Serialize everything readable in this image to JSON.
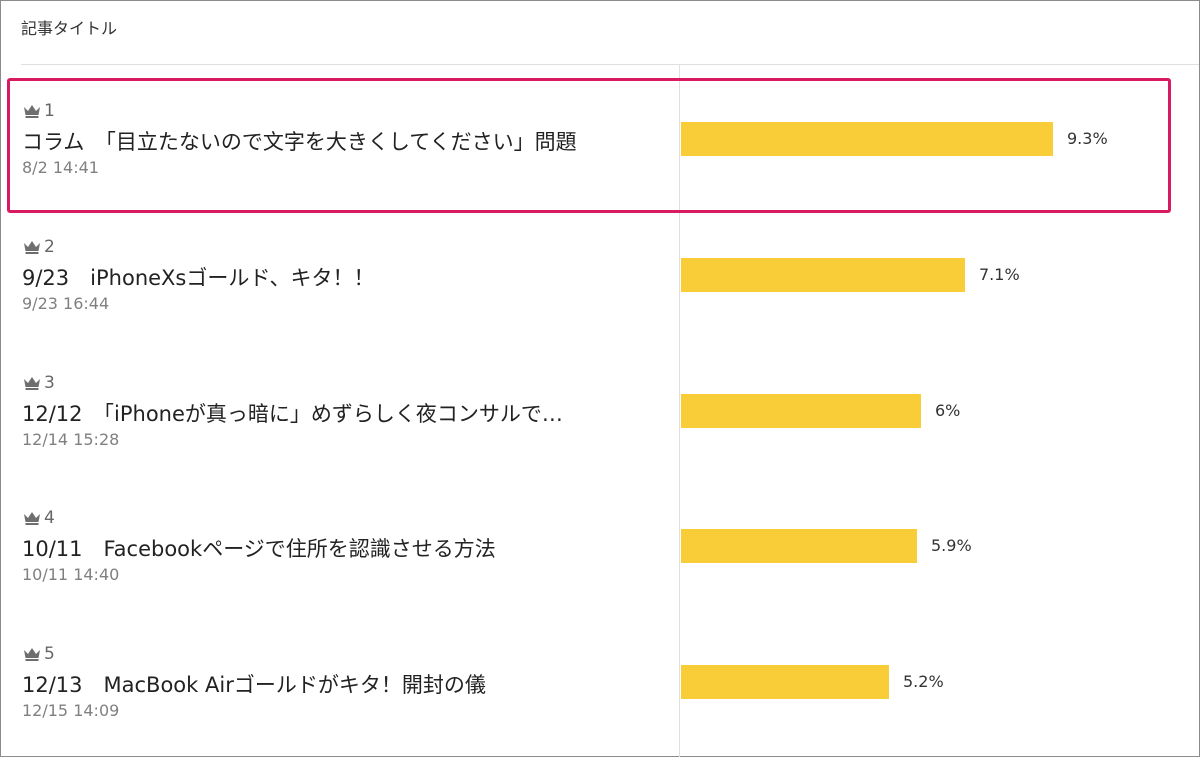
{
  "header": {
    "title": "記事タイトル"
  },
  "items": [
    {
      "rank": "1",
      "title": "コラム　「目立たないので文字を大きくしてください」問題",
      "date": "8/2 14:41",
      "percent_label": "9.3%",
      "share": 0.093
    },
    {
      "rank": "2",
      "title": "9/23　iPhoneXsゴールド、キタ！！",
      "date": "9/23 16:44",
      "percent_label": "7.1%",
      "share": 0.071
    },
    {
      "rank": "3",
      "title": "12/12　「iPhoneが真っ暗に」めずらしく夜コンサルで…",
      "date": "12/14 15:28",
      "percent_label": "6%",
      "share": 0.06
    },
    {
      "rank": "4",
      "title": "10/11　Facebookページで住所を認識させる方法",
      "date": "10/11 14:40",
      "percent_label": "5.9%",
      "share": 0.059
    },
    {
      "rank": "5",
      "title": "12/13　MacBook Airゴールドがキタ！開封の儀",
      "date": "12/15 14:09",
      "percent_label": "5.2%",
      "share": 0.052
    }
  ],
  "colors": {
    "bar": "#f8cd37",
    "highlight": "#d81b60"
  },
  "icons": {
    "rank": "crown-icon"
  }
}
